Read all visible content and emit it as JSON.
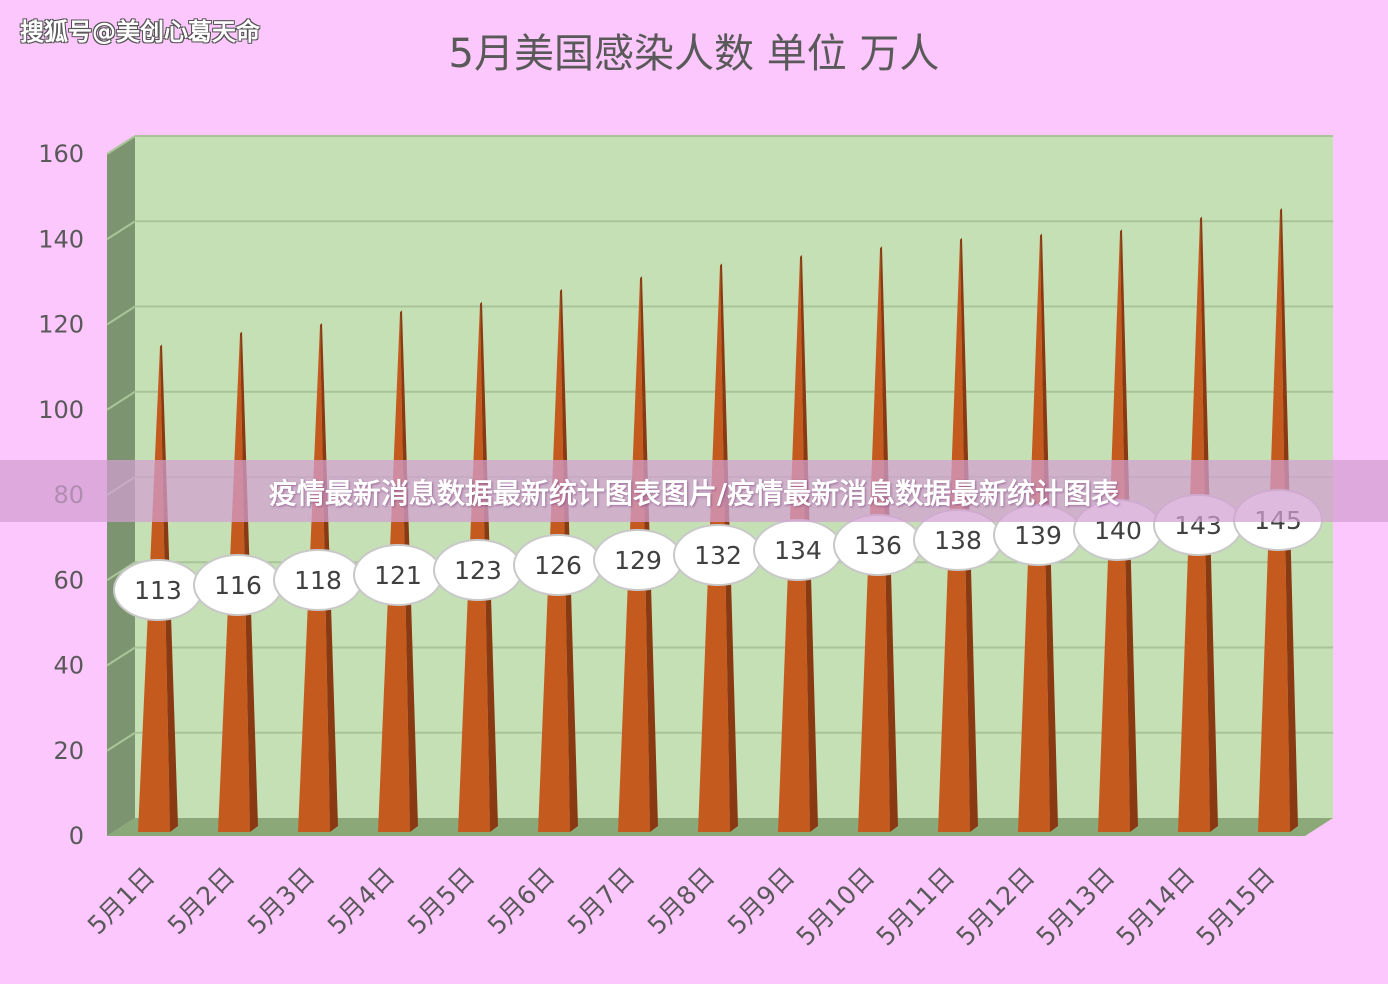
{
  "watermark": "搜狐号@美创心葛天命",
  "overlay_banner": "疫情最新消息数据最新统计图表图片/疫情最新消息数据最新统计图表",
  "colors": {
    "background": "#fcc7fc",
    "plot_area": "#c6e0b5",
    "floor": "#8aa878",
    "wall_side": "#7d9470",
    "spike_main": "#c55a1f",
    "spike_dark": "#8a3a12",
    "label_bubble": "#ffffff"
  },
  "chart_data": {
    "type": "bar",
    "title": "5月美国感染人数 单位 万人",
    "xlabel": "",
    "ylabel": "",
    "categories": [
      "5月1日",
      "5月2日",
      "5月3日",
      "5月4日",
      "5月5日",
      "5月6日",
      "5月7日",
      "5月8日",
      "5月9日",
      "5月10日",
      "5月11日",
      "5月12日",
      "5月13日",
      "5月14日",
      "5月15日"
    ],
    "values": [
      113,
      116,
      118,
      121,
      123,
      126,
      129,
      132,
      134,
      136,
      138,
      139,
      140,
      143,
      145
    ],
    "ylim": [
      0,
      160
    ],
    "yticks": [
      0,
      20,
      40,
      60,
      80,
      100,
      120,
      140,
      160
    ],
    "grid": true,
    "legend": "none",
    "bar_shape": "3d-spike",
    "data_labels": true
  }
}
